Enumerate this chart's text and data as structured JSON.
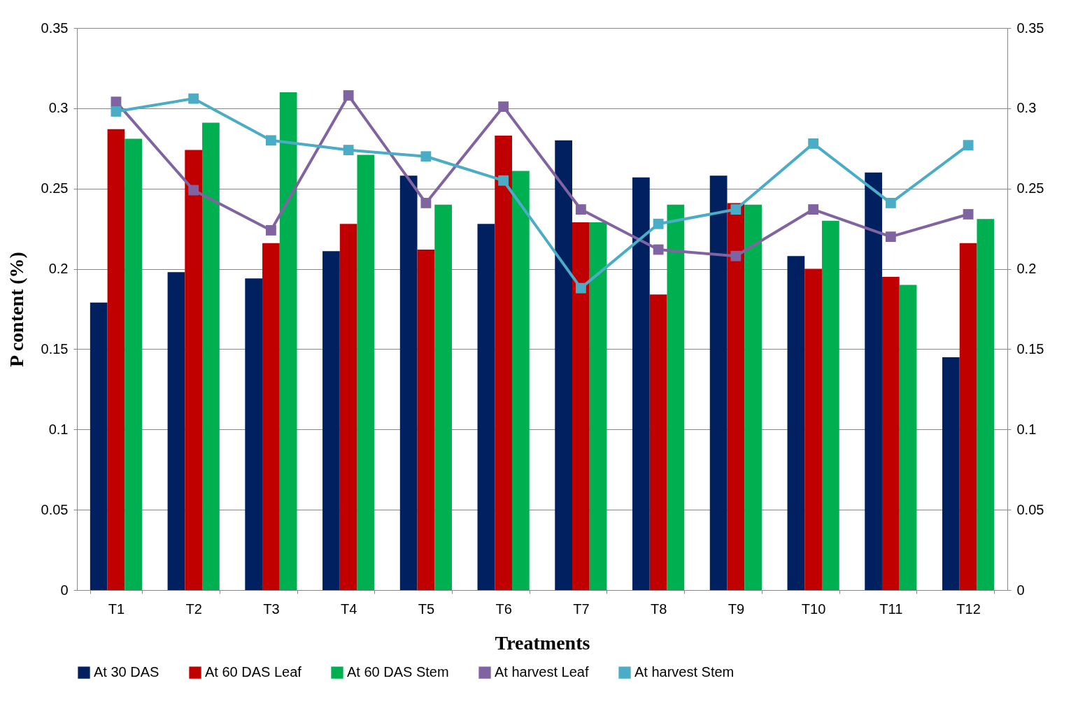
{
  "chart_data": {
    "type": "bar",
    "xlabel": "Treatments",
    "ylabel": "P content (%)",
    "categories": [
      "T1",
      "T2",
      "T3",
      "T4",
      "T5",
      "T6",
      "T7",
      "T8",
      "T9",
      "T10",
      "T11",
      "T12"
    ],
    "series": [
      {
        "name": "At 30 DAS",
        "color": "#002060",
        "values": [
          0.179,
          0.198,
          0.194,
          0.211,
          0.258,
          0.228,
          0.28,
          0.257,
          0.258,
          0.208,
          0.26,
          0.145
        ]
      },
      {
        "name": "At 60 DAS Leaf",
        "color": "#c00000",
        "values": [
          0.287,
          0.274,
          0.216,
          0.228,
          0.212,
          0.283,
          0.229,
          0.184,
          0.241,
          0.2,
          0.195,
          0.216
        ]
      },
      {
        "name": "At 60 DAS Stem",
        "color": "#00b050",
        "values": [
          0.281,
          0.291,
          0.31,
          0.271,
          0.24,
          0.261,
          0.229,
          0.24,
          0.24,
          0.23,
          0.19,
          0.231
        ]
      },
      {
        "name": "At harvest Leaf",
        "color": "#8064a2",
        "type": "line",
        "values": [
          0.304,
          0.249,
          0.224,
          0.308,
          0.241,
          0.301,
          0.237,
          0.212,
          0.208,
          0.237,
          0.22,
          0.234
        ]
      },
      {
        "name": "At harvest Stem",
        "color": "#4bacc6",
        "type": "line",
        "values": [
          0.298,
          0.306,
          0.28,
          0.274,
          0.27,
          0.255,
          0.188,
          0.228,
          0.237,
          0.278,
          0.241,
          0.277
        ]
      }
    ],
    "ylim": [
      0,
      0.35
    ],
    "yticks": [
      0,
      0.05,
      0.1,
      0.15,
      0.2,
      0.25,
      0.3,
      0.35
    ],
    "y2lim": [
      0,
      0.35
    ],
    "y2ticks": [
      0,
      0.05,
      0.1,
      0.15,
      0.2,
      0.25,
      0.3,
      0.35
    ],
    "grid": "y",
    "legend": "bottom",
    "marker": "square",
    "line_style": "solid"
  }
}
